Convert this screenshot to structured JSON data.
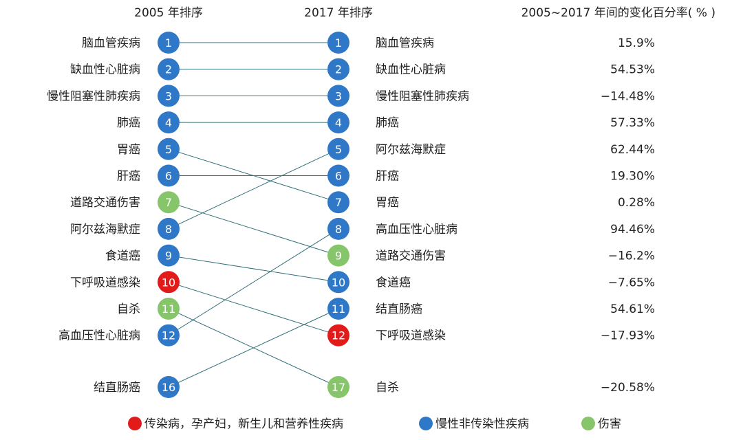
{
  "colors": {
    "infectious": "#e11a1a",
    "chronic": "#2f78c8",
    "injury": "#86c56a",
    "line": "#2f6f7a"
  },
  "chart_data": {
    "type": "slope",
    "headers": {
      "left": "2005 年排序",
      "middle": "2017 年排序",
      "right": "2005~2017 年间的变化百分率( % )"
    },
    "rows_2005": [
      {
        "name": "脑血管疾病",
        "rank": 1,
        "group": "chronic"
      },
      {
        "name": "缺血性心脏病",
        "rank": 2,
        "group": "chronic"
      },
      {
        "name": "慢性阻塞性肺疾病",
        "rank": 3,
        "group": "chronic"
      },
      {
        "name": "肺癌",
        "rank": 4,
        "group": "chronic"
      },
      {
        "name": "胃癌",
        "rank": 5,
        "group": "chronic"
      },
      {
        "name": "肝癌",
        "rank": 6,
        "group": "chronic"
      },
      {
        "name": "道路交通伤害",
        "rank": 7,
        "group": "injury"
      },
      {
        "name": "阿尔兹海默症",
        "rank": 8,
        "group": "chronic"
      },
      {
        "name": "食道癌",
        "rank": 9,
        "group": "chronic"
      },
      {
        "name": "下呼吸道感染",
        "rank": 10,
        "group": "infectious"
      },
      {
        "name": "自杀",
        "rank": 11,
        "group": "injury"
      },
      {
        "name": "高血压性心脏病",
        "rank": 12,
        "group": "chronic"
      },
      {
        "name": "结直肠癌",
        "rank": 16,
        "group": "chronic"
      }
    ],
    "rows_2017": [
      {
        "name": "脑血管疾病",
        "rank": 1,
        "group": "chronic",
        "change": "15.9%"
      },
      {
        "name": "缺血性心脏病",
        "rank": 2,
        "group": "chronic",
        "change": "54.53%"
      },
      {
        "name": "慢性阻塞性肺疾病",
        "rank": 3,
        "group": "chronic",
        "change": "−14.48%"
      },
      {
        "name": "肺癌",
        "rank": 4,
        "group": "chronic",
        "change": "57.33%"
      },
      {
        "name": "阿尔兹海默症",
        "rank": 5,
        "group": "chronic",
        "change": "62.44%"
      },
      {
        "name": "肝癌",
        "rank": 6,
        "group": "chronic",
        "change": "19.30%"
      },
      {
        "name": "胃癌",
        "rank": 7,
        "group": "chronic",
        "change": "0.28%"
      },
      {
        "name": "高血压性心脏病",
        "rank": 8,
        "group": "chronic",
        "change": "94.46%"
      },
      {
        "name": "道路交通伤害",
        "rank": 9,
        "group": "injury",
        "change": "−16.2%"
      },
      {
        "name": "食道癌",
        "rank": 10,
        "group": "chronic",
        "change": "−7.65%"
      },
      {
        "name": "结直肠癌",
        "rank": 11,
        "group": "chronic",
        "change": "54.61%"
      },
      {
        "name": "下呼吸道感染",
        "rank": 12,
        "group": "infectious",
        "change": "−17.93%"
      },
      {
        "name": "自杀",
        "rank": 17,
        "group": "injury",
        "change": "−20.58%"
      }
    ],
    "change_values": [
      15.9,
      54.53,
      -14.48,
      57.33,
      62.44,
      19.3,
      0.28,
      94.46,
      -16.2,
      -7.65,
      54.61,
      -17.93,
      -20.58
    ],
    "legend": [
      {
        "label": "传染病，孕产妇，新生儿和营养性疾病",
        "group": "infectious"
      },
      {
        "label": "慢性非传染性疾病",
        "group": "chronic"
      },
      {
        "label": "伤害",
        "group": "injury"
      }
    ]
  }
}
